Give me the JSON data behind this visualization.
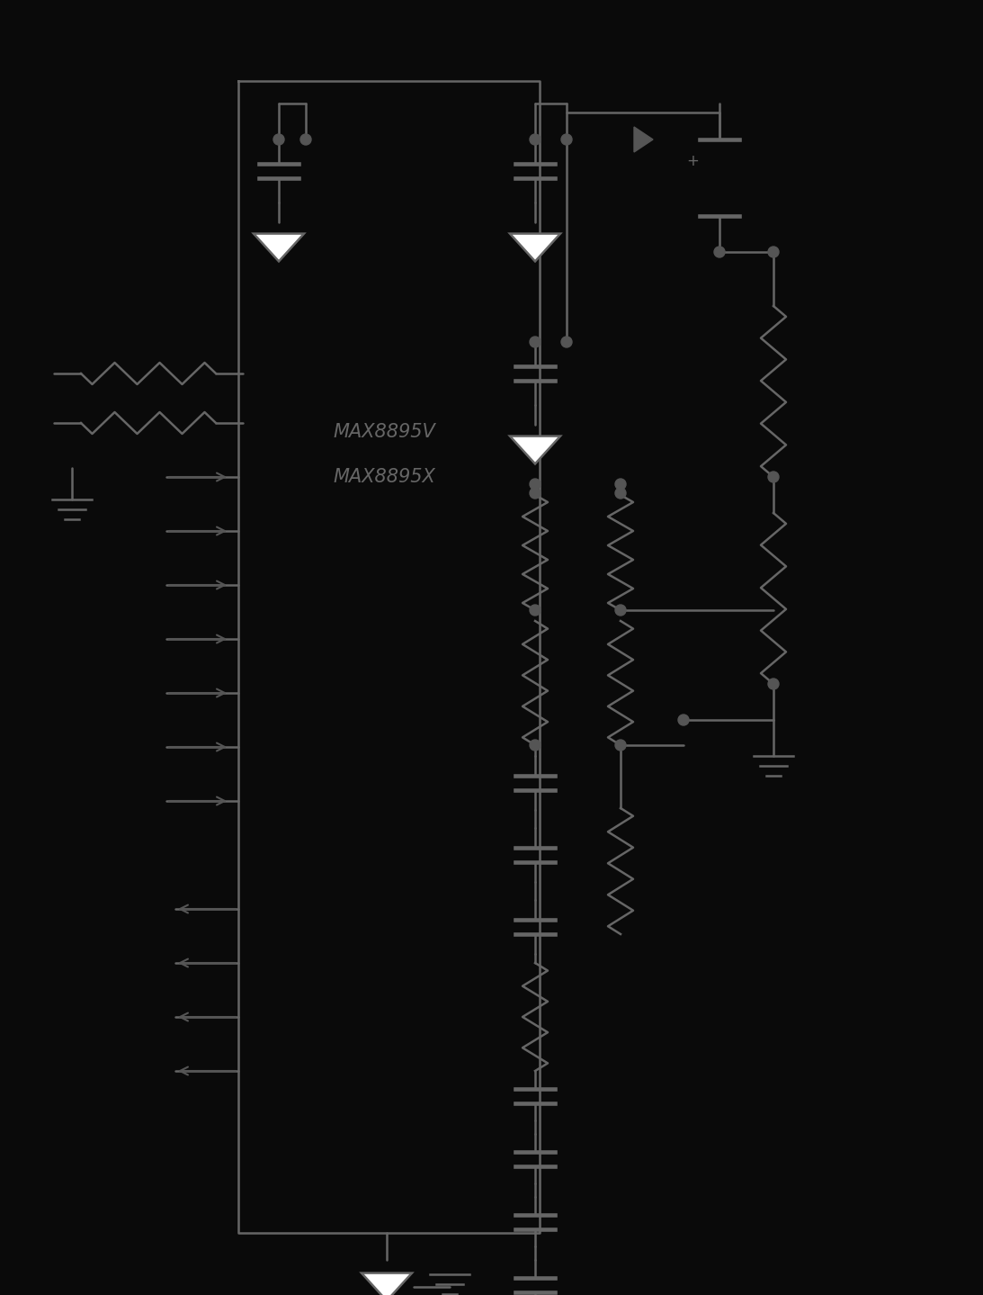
{
  "bg_color": "#0a0a0a",
  "line_color": "#666666",
  "dot_color": "#555555",
  "white": "#ffffff",
  "title_line1": "MAX8895V",
  "title_line2": "MAX8895X",
  "fig_width": 10.93,
  "fig_height": 14.39,
  "dpi": 100
}
